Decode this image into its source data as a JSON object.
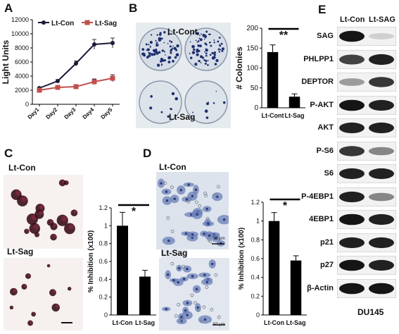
{
  "panels": {
    "A": "A",
    "B": "B",
    "C": "C",
    "D": "D",
    "E": "E"
  },
  "panelA": {
    "chart_data": {
      "type": "line",
      "categories": [
        "Day1",
        "Day2",
        "Day3",
        "Day4",
        "Day5"
      ],
      "ylabel": "Light Units",
      "ylim": [
        0,
        12000
      ],
      "yticks": [
        0,
        2000,
        4000,
        6000,
        8000,
        10000,
        12000
      ],
      "series": [
        {
          "name": "Lt-Con",
          "values": [
            2300,
            3300,
            5800,
            8500,
            8700
          ],
          "errors": [
            150,
            200,
            350,
            700,
            700
          ],
          "color": "#1a1a3a"
        },
        {
          "name": "Lt-Sag",
          "values": [
            2000,
            2400,
            2500,
            3200,
            3700
          ],
          "errors": [
            120,
            150,
            200,
            400,
            500
          ],
          "color": "#c0504d"
        }
      ]
    }
  },
  "panelB": {
    "photo_label_top": "Lt-Cont",
    "photo_label_bottom": "Lt-Sag",
    "chart_data": {
      "type": "bar",
      "categories": [
        "Lt-Cont",
        "Lt-Sag"
      ],
      "values": [
        140,
        28
      ],
      "errors": [
        18,
        7
      ],
      "ylabel": "# Colonies",
      "ylim": [
        0,
        200
      ],
      "yticks": [
        0,
        50,
        100,
        150,
        200
      ],
      "significance": "**"
    }
  },
  "panelC": {
    "photo_label_top": "Lt-Con",
    "photo_label_bottom": "Lt-Sag",
    "chart_data": {
      "type": "bar",
      "categories": [
        "Lt-Con",
        "Lt-Sag"
      ],
      "values": [
        1.0,
        0.43
      ],
      "errors": [
        0.15,
        0.07
      ],
      "ylabel": "% Inhibition (x100)",
      "ylim": [
        0,
        1.2
      ],
      "yticks": [
        "0",
        "0.2",
        "0.4",
        "0.6",
        "0.8",
        "1",
        "1.2"
      ],
      "significance": "*"
    }
  },
  "panelD": {
    "photo_label_top": "Lt-Con",
    "photo_label_bottom": "Lt-Sag",
    "scale_label": "50 μm",
    "chart_data": {
      "type": "bar",
      "categories": [
        "Lt-Con",
        "Lt-Sag"
      ],
      "values": [
        1.0,
        0.58
      ],
      "errors": [
        0.09,
        0.05
      ],
      "ylabel": "% Inhibition (x100)",
      "ylim": [
        0,
        1.2
      ],
      "yticks": [
        "0",
        "0.2",
        "0.4",
        "0.6",
        "0.8",
        "1",
        "1.2"
      ],
      "significance": "*"
    }
  },
  "panelE": {
    "lanes": [
      "Lt-Con",
      "Lt-SAG"
    ],
    "cell_line": "DU145",
    "blots": [
      {
        "label": "SAG",
        "bands": [
          0.95,
          0.12
        ]
      },
      {
        "label": "PHLPP1",
        "bands": [
          0.75,
          0.9
        ]
      },
      {
        "label": "DEPTOR",
        "bands": [
          0.35,
          0.8
        ]
      },
      {
        "label": "P-AKT",
        "bands": [
          0.95,
          0.9
        ]
      },
      {
        "label": "AKT",
        "bands": [
          0.9,
          0.9
        ]
      },
      {
        "label": "P-S6",
        "bands": [
          0.8,
          0.45
        ]
      },
      {
        "label": "S6",
        "bands": [
          0.9,
          0.9
        ]
      },
      {
        "label": "P-4EBP1",
        "bands": [
          0.9,
          0.45
        ]
      },
      {
        "label": "4EBP1",
        "bands": [
          0.95,
          0.9
        ]
      },
      {
        "label": "p21",
        "bands": [
          0.9,
          0.9
        ]
      },
      {
        "label": "p27",
        "bands": [
          0.95,
          0.9
        ]
      },
      {
        "label": "β-Actin",
        "bands": [
          0.95,
          0.95
        ]
      }
    ]
  }
}
